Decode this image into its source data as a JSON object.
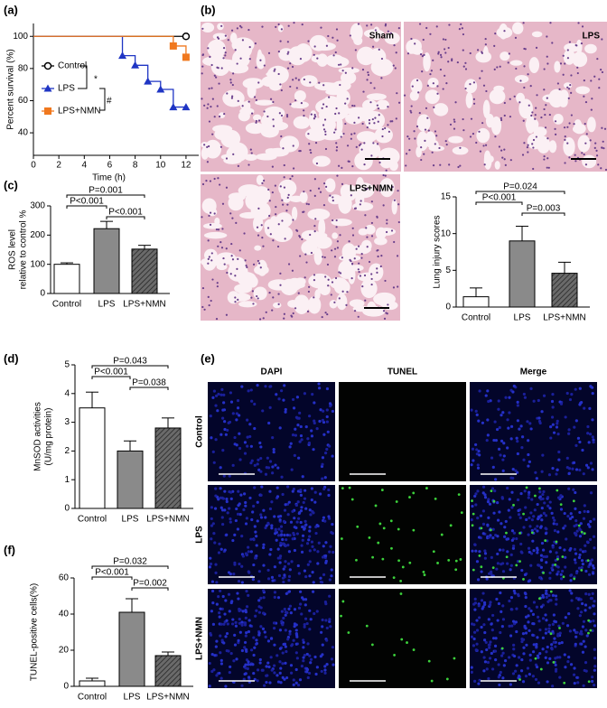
{
  "figure": {
    "panel_labels": [
      "(a)",
      "(b)",
      "(c)",
      "(d)",
      "(e)",
      "(f)"
    ],
    "histology_labels": [
      "Sham",
      "LPS",
      "LPS+NMN"
    ],
    "tunel_columns": [
      "DAPI",
      "TUNEL",
      "Merge"
    ],
    "tunel_rows": [
      "Control",
      "LPS",
      "LPS+NMN"
    ]
  },
  "chart_data": [
    {
      "type": "survival",
      "xlabel": "Time (h)",
      "ylabel": "Percent survival (%)",
      "xlim": [
        0,
        13
      ],
      "xticks": [
        0,
        2,
        4,
        6,
        8,
        10,
        12
      ],
      "ylim": [
        26,
        108
      ],
      "yticks": [
        40,
        60,
        80,
        100
      ],
      "annotations": [
        "*",
        "#"
      ],
      "series": [
        {
          "name": "Control",
          "color": "#000000",
          "marker": "circle",
          "x": [
            0,
            12
          ],
          "values": [
            100,
            100
          ]
        },
        {
          "name": "LPS",
          "color": "#1f35c4",
          "marker": "triangle",
          "x": [
            0,
            7,
            8,
            9,
            10,
            11,
            12
          ],
          "values": [
            100,
            88,
            82,
            72,
            67,
            56,
            56
          ]
        },
        {
          "name": "LPS+NMN",
          "color": "#f0781e",
          "marker": "square",
          "x": [
            0,
            11,
            12
          ],
          "values": [
            100,
            94,
            87
          ]
        }
      ]
    },
    {
      "type": "bar",
      "ylabel": [
        "Lung injury scores"
      ],
      "categories": [
        "Control",
        "LPS",
        "LPS+NMN"
      ],
      "values": [
        1.4,
        9,
        4.6
      ],
      "errors": [
        1.2,
        2,
        1.5
      ],
      "fills": [
        "#ffffff",
        "#8a8a8a",
        "#6a6a6a"
      ],
      "hatch": [
        false,
        false,
        true
      ],
      "ylim": [
        0,
        15
      ],
      "yticks": [
        0,
        5,
        10,
        15
      ],
      "comparisons": [
        {
          "pair": [
            0,
            2
          ],
          "label": "P=0.024"
        },
        {
          "pair": [
            0,
            1
          ],
          "label": "P<0.001"
        },
        {
          "pair": [
            1,
            2
          ],
          "label": "P=0.003"
        }
      ]
    },
    {
      "type": "bar",
      "ylabel": [
        "ROS level",
        "relative to control %"
      ],
      "categories": [
        "Control",
        "LPS",
        "LPS+NMN"
      ],
      "values": [
        100,
        222,
        152
      ],
      "errors": [
        5,
        25,
        13
      ],
      "fills": [
        "#ffffff",
        "#8a8a8a",
        "#6a6a6a"
      ],
      "hatch": [
        false,
        false,
        true
      ],
      "ylim": [
        0,
        300
      ],
      "yticks": [
        0,
        100,
        200,
        300
      ],
      "comparisons": [
        {
          "pair": [
            0,
            2
          ],
          "label": "P=0.001"
        },
        {
          "pair": [
            0,
            1
          ],
          "label": "P<0.001"
        },
        {
          "pair": [
            1,
            2
          ],
          "label": "P<0.001"
        }
      ]
    },
    {
      "type": "bar",
      "ylabel": [
        "MnSOD activities",
        "(U/mg protein)"
      ],
      "categories": [
        "Control",
        "LPS",
        "LPS+NMN"
      ],
      "values": [
        3.5,
        2.0,
        2.8
      ],
      "errors": [
        0.55,
        0.35,
        0.35
      ],
      "fills": [
        "#ffffff",
        "#8a8a8a",
        "#6a6a6a"
      ],
      "hatch": [
        false,
        false,
        true
      ],
      "ylim": [
        0,
        5
      ],
      "yticks": [
        0,
        1,
        2,
        3,
        4,
        5
      ],
      "comparisons": [
        {
          "pair": [
            0,
            2
          ],
          "label": "P=0.043"
        },
        {
          "pair": [
            0,
            1
          ],
          "label": "P<0.001"
        },
        {
          "pair": [
            1,
            2
          ],
          "label": "P=0.038"
        }
      ]
    },
    {
      "type": "bar",
      "ylabel": [
        "TUNEL-positive cells(%)"
      ],
      "categories": [
        "Control",
        "LPS",
        "LPS+NMN"
      ],
      "values": [
        3,
        41,
        17
      ],
      "errors": [
        1.5,
        7.5,
        2
      ],
      "fills": [
        "#ffffff",
        "#8a8a8a",
        "#6a6a6a"
      ],
      "hatch": [
        false,
        false,
        true
      ],
      "ylim": [
        0,
        60
      ],
      "yticks": [
        0,
        20,
        40,
        60
      ],
      "comparisons": [
        {
          "pair": [
            0,
            2
          ],
          "label": "P=0.032"
        },
        {
          "pair": [
            0,
            1
          ],
          "label": "P<0.001"
        },
        {
          "pair": [
            1,
            2
          ],
          "label": "P=0.002"
        }
      ]
    }
  ]
}
